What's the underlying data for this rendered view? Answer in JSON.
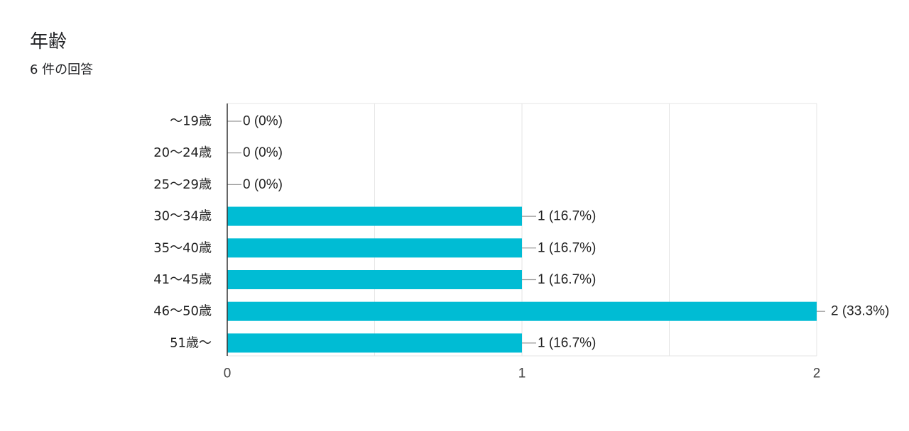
{
  "header": {
    "title": "年齢",
    "subtitle": "6 件の回答"
  },
  "colors": {
    "bar": "#00bcd4",
    "grid": "#e6e6e6",
    "axis": "#333333",
    "leader": "#999999"
  },
  "chart_data": {
    "type": "bar",
    "orientation": "horizontal",
    "title": "年齢",
    "subtitle": "6 件の回答",
    "categories": [
      "～19歳",
      "20～24歳",
      "25～29歳",
      "30～34歳",
      "35～40歳",
      "41～45歳",
      "46～50歳",
      "51歳～"
    ],
    "values": [
      0,
      0,
      0,
      1,
      1,
      1,
      2,
      1
    ],
    "data_labels": [
      "0 (0%)",
      "0 (0%)",
      "0 (0%)",
      "1 (16.7%)",
      "1 (16.7%)",
      "1 (16.7%)",
      "2 (33.3%)",
      "1 (16.7%)"
    ],
    "xlim": [
      0,
      2
    ],
    "x_ticks": [
      "0",
      "1",
      "2"
    ],
    "grid": true,
    "legend": "none"
  }
}
